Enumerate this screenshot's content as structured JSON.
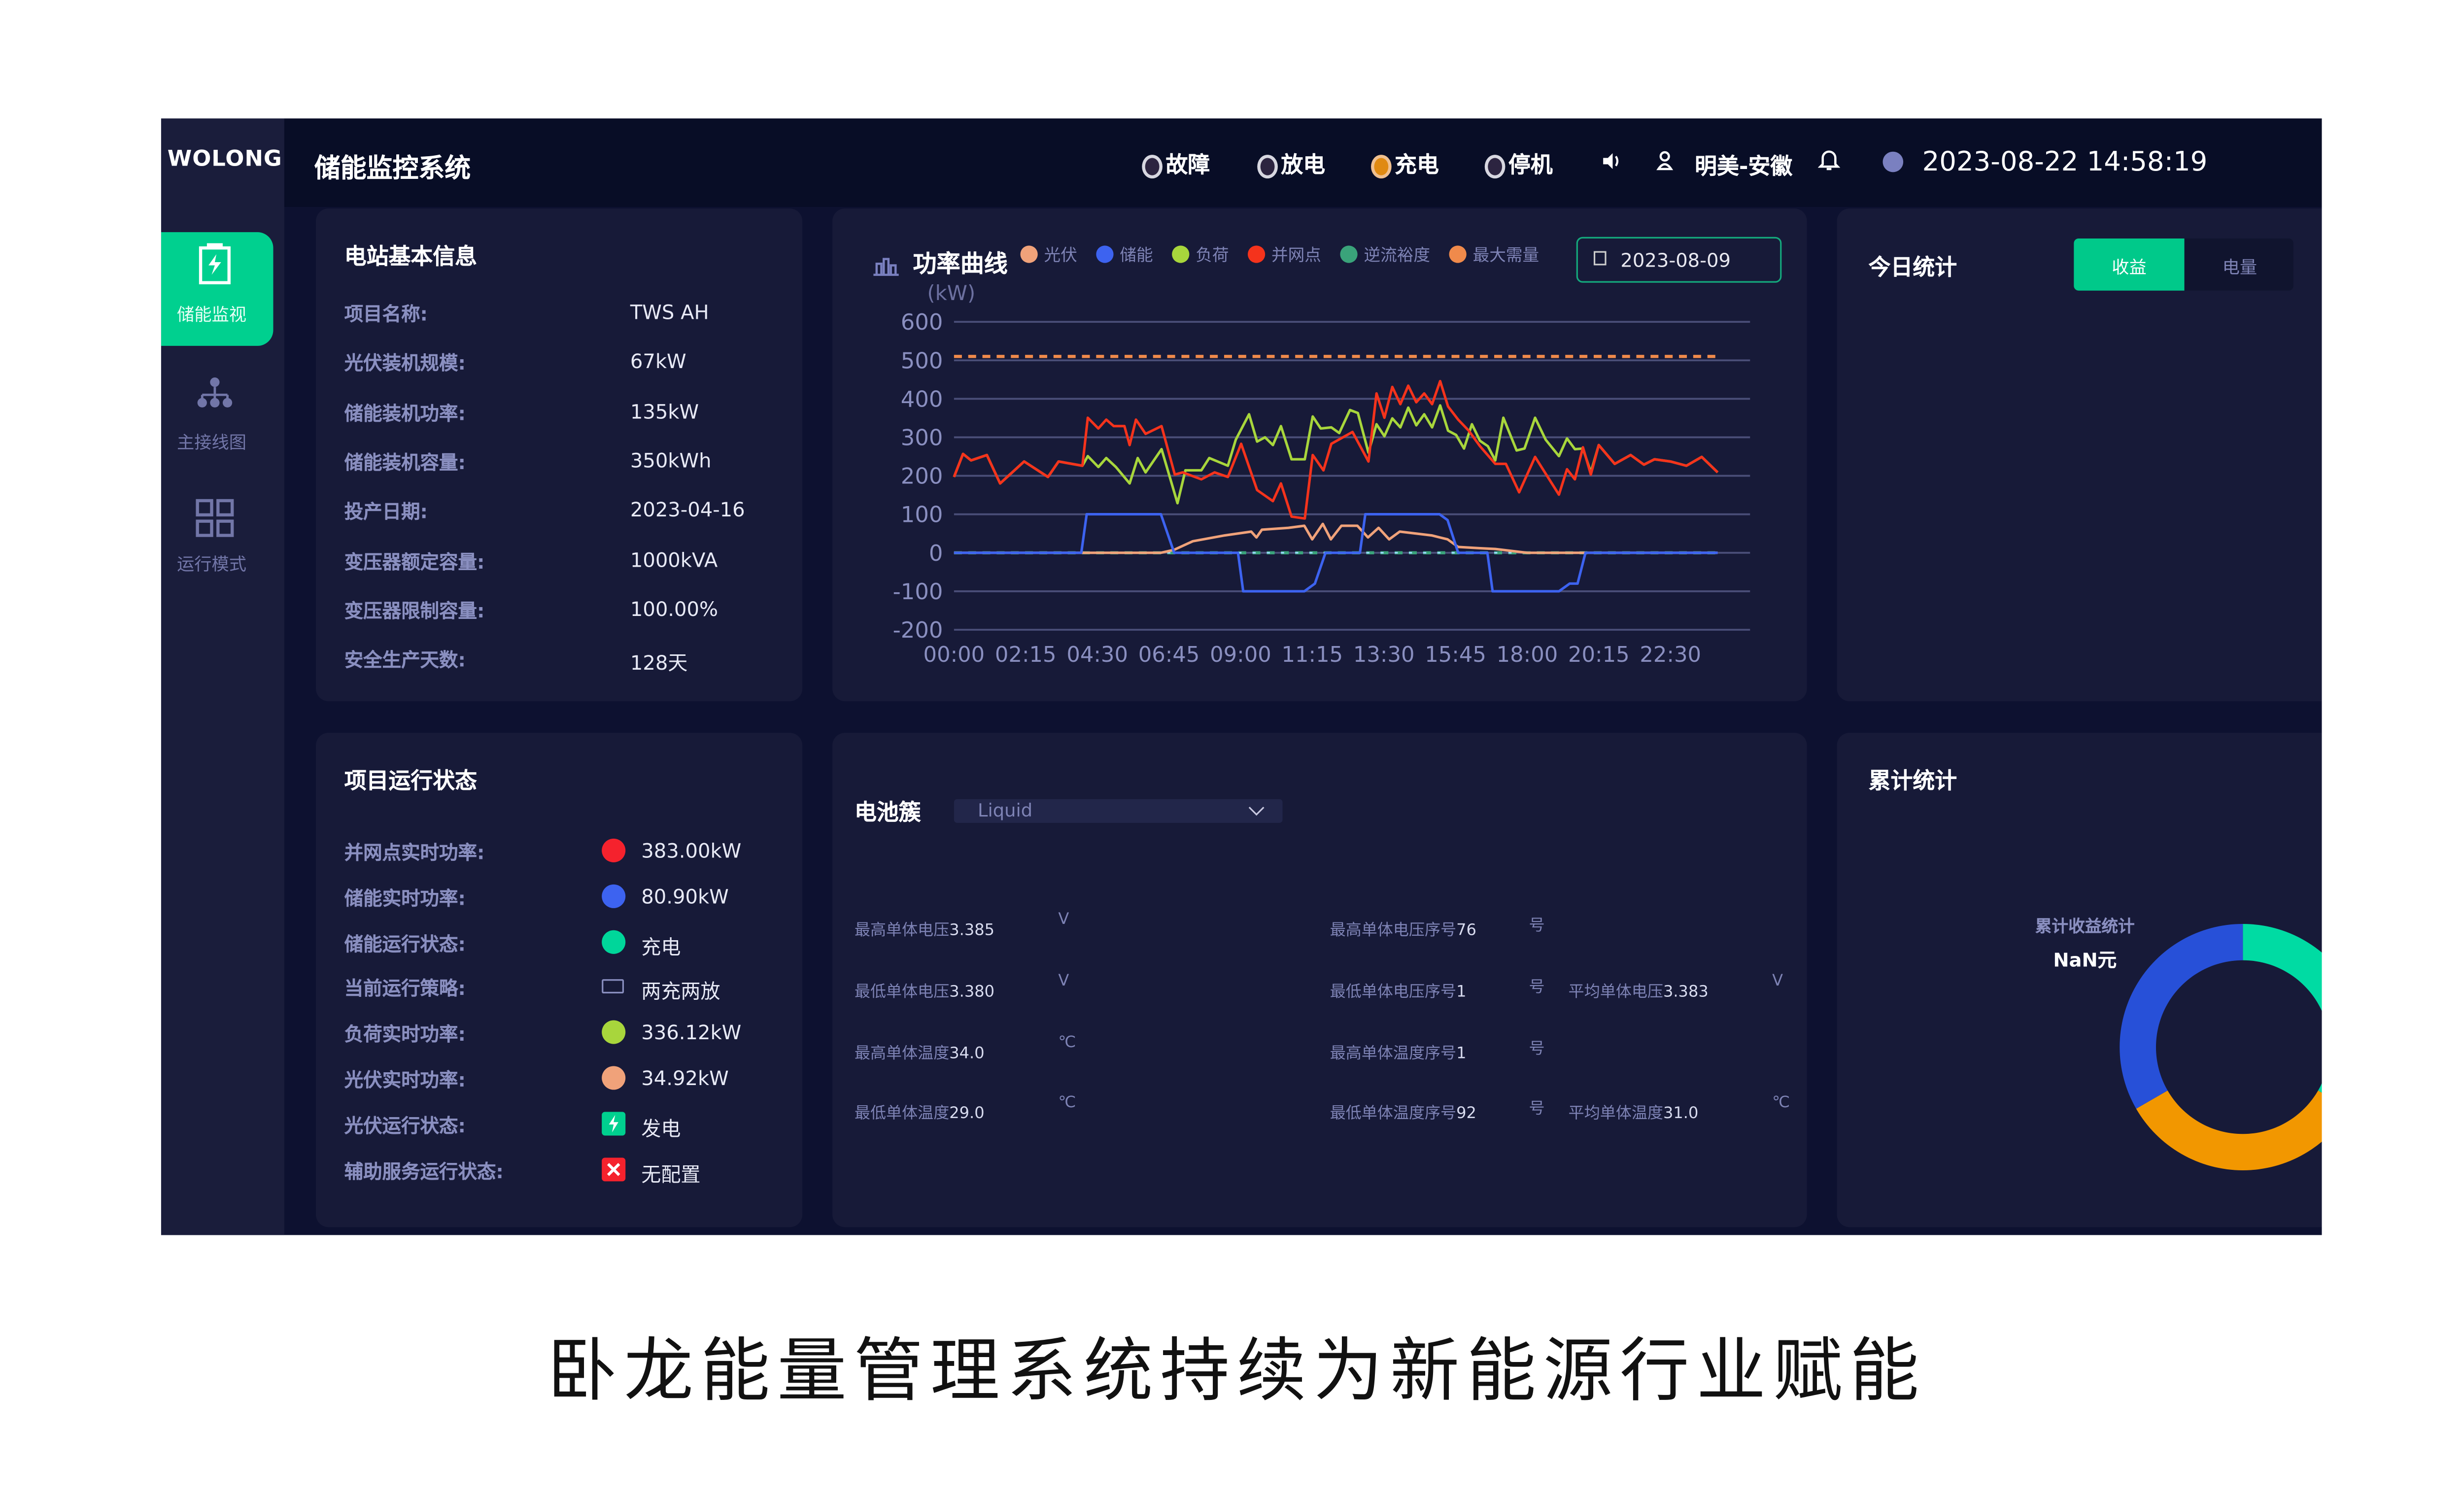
{
  "app": {
    "logo": "WOLONG",
    "title": "储能监控系统"
  },
  "header": {
    "statuses": [
      {
        "label": "故障",
        "color": "#2c2440",
        "active": false
      },
      {
        "label": "放电",
        "color": "#2c2440",
        "active": false
      },
      {
        "label": "充电",
        "color": "#e08a12",
        "active": true
      },
      {
        "label": "停机",
        "color": "#2c2440",
        "active": false
      }
    ],
    "user": "明美-安徽",
    "datetime": "2023-08-22 14:58:19"
  },
  "sidebar": {
    "items": [
      {
        "label": "储能监视",
        "icon": "battery-charge-icon",
        "active": true
      },
      {
        "label": "主接线图",
        "icon": "hierarchy-icon",
        "active": false
      },
      {
        "label": "运行模式",
        "icon": "grid-icon",
        "active": false
      }
    ],
    "accent": "#00d08f"
  },
  "station_info": {
    "title": "电站基本信息",
    "rows": [
      {
        "label": "项目名称:",
        "value": "TWS AH"
      },
      {
        "label": "光伏装机规模:",
        "value": "67kW"
      },
      {
        "label": "储能装机功率:",
        "value": "135kW"
      },
      {
        "label": "储能装机容量:",
        "value": "350kWh"
      },
      {
        "label": "投产日期:",
        "value": "2023-04-16"
      },
      {
        "label": "变压器额定容量:",
        "value": "1000kVA"
      },
      {
        "label": "变压器限制容量:",
        "value": "100.00%"
      },
      {
        "label": "安全生产天数:",
        "value": "128天"
      }
    ]
  },
  "run_status": {
    "title": "项目运行状态",
    "rows": [
      {
        "label": "并网点实时功率:",
        "value": "383.00kW",
        "icon": "red-dot",
        "color": "#f5222d"
      },
      {
        "label": "储能实时功率:",
        "value": "80.90kW",
        "icon": "blue-dot",
        "color": "#3d63f0"
      },
      {
        "label": "储能运行状态:",
        "value": "充电",
        "icon": "green-dot",
        "color": "#00d69a"
      },
      {
        "label": "当前运行策略:",
        "value": "两充两放",
        "icon": "battery-icon",
        "color": "#8a8fc0"
      },
      {
        "label": "负荷实时功率:",
        "value": "336.12kW",
        "icon": "lime-dot",
        "color": "#a8d63c"
      },
      {
        "label": "光伏实时功率:",
        "value": "34.92kW",
        "icon": "peach-dot",
        "color": "#f0a27a"
      },
      {
        "label": "光伏运行状态:",
        "value": "发电",
        "icon": "lightning-icon",
        "color": "#00d08f"
      },
      {
        "label": "辅助服务运行状态:",
        "value": "无配置",
        "icon": "close-icon",
        "color": "#f5222d"
      }
    ]
  },
  "power_curve": {
    "title": "功率曲线",
    "date": "2023-08-09"
  },
  "chart_data": {
    "type": "line",
    "ylabel": "(kW)",
    "ylim": [
      -200,
      600
    ],
    "yticks": [
      600,
      500,
      400,
      300,
      200,
      100,
      0,
      -100,
      -200
    ],
    "xticks": [
      "00:00",
      "02:15",
      "04:30",
      "06:45",
      "09:00",
      "11:15",
      "13:30",
      "15:45",
      "18:00",
      "20:15",
      "22:30"
    ],
    "xlim": [
      "00:00",
      "25:00"
    ],
    "grid": true,
    "legend_position": "top",
    "series": [
      {
        "name": "光伏",
        "color": "#f0a27a",
        "points": [
          [
            "00:00",
            0
          ],
          [
            "06:30",
            0
          ],
          [
            "06:55",
            8
          ],
          [
            "07:30",
            30
          ],
          [
            "08:30",
            45
          ],
          [
            "09:20",
            55
          ],
          [
            "09:30",
            40
          ],
          [
            "09:40",
            60
          ],
          [
            "10:30",
            65
          ],
          [
            "11:00",
            70
          ],
          [
            "11:15",
            35
          ],
          [
            "11:35",
            75
          ],
          [
            "11:50",
            35
          ],
          [
            "12:10",
            70
          ],
          [
            "12:40",
            70
          ],
          [
            "13:00",
            40
          ],
          [
            "13:20",
            65
          ],
          [
            "13:40",
            35
          ],
          [
            "14:00",
            55
          ],
          [
            "14:30",
            50
          ],
          [
            "15:00",
            45
          ],
          [
            "15:30",
            35
          ],
          [
            "15:50",
            15
          ],
          [
            "16:30",
            12
          ],
          [
            "17:00",
            10
          ],
          [
            "17:30",
            5
          ],
          [
            "18:00",
            0
          ],
          [
            "23:59",
            0
          ]
        ]
      },
      {
        "name": "储能",
        "color": "#3d63f0",
        "points": [
          [
            "00:00",
            0
          ],
          [
            "04:00",
            0
          ],
          [
            "04:10",
            100
          ],
          [
            "06:30",
            100
          ],
          [
            "06:55",
            0
          ],
          [
            "08:55",
            0
          ],
          [
            "09:05",
            -100
          ],
          [
            "11:00",
            -100
          ],
          [
            "11:20",
            -80
          ],
          [
            "11:40",
            0
          ],
          [
            "12:45",
            0
          ],
          [
            "12:55",
            100
          ],
          [
            "15:15",
            100
          ],
          [
            "15:30",
            85
          ],
          [
            "15:50",
            0
          ],
          [
            "16:45",
            0
          ],
          [
            "16:55",
            -100
          ],
          [
            "19:00",
            -100
          ],
          [
            "19:20",
            -80
          ],
          [
            "19:35",
            -80
          ],
          [
            "19:50",
            0
          ],
          [
            "23:59",
            0
          ]
        ]
      },
      {
        "name": "负荷",
        "color": "#a8d63c",
        "points": [
          [
            "00:00",
            197
          ],
          [
            "00:17",
            257
          ],
          [
            "00:32",
            240
          ],
          [
            "01:02",
            254
          ],
          [
            "01:27",
            180
          ],
          [
            "02:12",
            237
          ],
          [
            "02:57",
            197
          ],
          [
            "03:17",
            237
          ],
          [
            "04:02",
            226
          ],
          [
            "04:12",
            251
          ],
          [
            "04:32",
            223
          ],
          [
            "04:47",
            246
          ],
          [
            "05:05",
            223
          ],
          [
            "05:31",
            180
          ],
          [
            "05:46",
            246
          ],
          [
            "06:01",
            209
          ],
          [
            "06:31",
            269
          ],
          [
            "07:01",
            129
          ],
          [
            "07:16",
            214
          ],
          [
            "07:46",
            214
          ],
          [
            "08:01",
            246
          ],
          [
            "08:36",
            226
          ],
          [
            "08:51",
            294
          ],
          [
            "09:16",
            360
          ],
          [
            "09:31",
            289
          ],
          [
            "09:46",
            300
          ],
          [
            "10:01",
            280
          ],
          [
            "10:16",
            329
          ],
          [
            "10:36",
            243
          ],
          [
            "11:01",
            243
          ],
          [
            "11:16",
            354
          ],
          [
            "11:31",
            323
          ],
          [
            "11:51",
            326
          ],
          [
            "12:06",
            311
          ],
          [
            "12:26",
            371
          ],
          [
            "12:41",
            363
          ],
          [
            "13:01",
            260
          ],
          [
            "13:16",
            334
          ],
          [
            "13:31",
            303
          ],
          [
            "13:46",
            349
          ],
          [
            "14:01",
            326
          ],
          [
            "14:16",
            377
          ],
          [
            "14:31",
            331
          ],
          [
            "14:46",
            360
          ],
          [
            "15:01",
            326
          ],
          [
            "15:16",
            383
          ],
          [
            "15:31",
            317
          ],
          [
            "15:46",
            306
          ],
          [
            "16:01",
            271
          ],
          [
            "16:16",
            334
          ],
          [
            "16:31",
            291
          ],
          [
            "16:46",
            277
          ],
          [
            "17:00",
            240
          ],
          [
            "17:15",
            351
          ],
          [
            "17:40",
            266
          ],
          [
            "17:55",
            271
          ],
          [
            "18:15",
            351
          ],
          [
            "18:35",
            294
          ],
          [
            "19:00",
            251
          ],
          [
            "19:15",
            297
          ],
          [
            "19:30",
            269
          ],
          [
            "19:45",
            271
          ],
          [
            "20:00",
            209
          ],
          [
            "20:15",
            280
          ],
          [
            "20:45",
            231
          ],
          [
            "21:15",
            254
          ],
          [
            "21:40",
            229
          ],
          [
            "22:00",
            243
          ],
          [
            "22:30",
            237
          ],
          [
            "23:00",
            226
          ],
          [
            "23:29",
            249
          ],
          [
            "23:59",
            209
          ]
        ]
      },
      {
        "name": "并网点",
        "color": "#f5331c",
        "points": [
          [
            "00:00",
            197
          ],
          [
            "00:17",
            257
          ],
          [
            "00:32",
            240
          ],
          [
            "01:02",
            254
          ],
          [
            "01:27",
            180
          ],
          [
            "02:12",
            237
          ],
          [
            "02:57",
            197
          ],
          [
            "03:17",
            237
          ],
          [
            "04:02",
            226
          ],
          [
            "04:12",
            351
          ],
          [
            "04:32",
            323
          ],
          [
            "04:47",
            346
          ],
          [
            "05:01",
            329
          ],
          [
            "05:21",
            329
          ],
          [
            "05:31",
            280
          ],
          [
            "05:43",
            346
          ],
          [
            "06:01",
            309
          ],
          [
            "06:31",
            329
          ],
          [
            "06:56",
            203
          ],
          [
            "07:11",
            209
          ],
          [
            "07:46",
            191
          ],
          [
            "08:11",
            209
          ],
          [
            "08:36",
            197
          ],
          [
            "09:01",
            283
          ],
          [
            "09:31",
            163
          ],
          [
            "10:01",
            134
          ],
          [
            "10:16",
            180
          ],
          [
            "10:36",
            94
          ],
          [
            "11:01",
            89
          ],
          [
            "11:16",
            254
          ],
          [
            "11:36",
            214
          ],
          [
            "11:51",
            283
          ],
          [
            "12:31",
            314
          ],
          [
            "13:01",
            237
          ],
          [
            "13:16",
            414
          ],
          [
            "13:31",
            351
          ],
          [
            "13:46",
            431
          ],
          [
            "14:01",
            386
          ],
          [
            "14:16",
            434
          ],
          [
            "14:31",
            391
          ],
          [
            "14:46",
            414
          ],
          [
            "15:01",
            386
          ],
          [
            "15:16",
            446
          ],
          [
            "15:31",
            380
          ],
          [
            "15:50",
            346
          ],
          [
            "16:10",
            317
          ],
          [
            "16:31",
            277
          ],
          [
            "17:00",
            231
          ],
          [
            "17:20",
            231
          ],
          [
            "17:45",
            157
          ],
          [
            "18:15",
            249
          ],
          [
            "19:00",
            151
          ],
          [
            "19:15",
            217
          ],
          [
            "19:30",
            191
          ],
          [
            "19:45",
            274
          ],
          [
            "20:00",
            203
          ],
          [
            "20:15",
            280
          ],
          [
            "20:45",
            231
          ],
          [
            "21:15",
            254
          ],
          [
            "21:40",
            229
          ],
          [
            "22:00",
            243
          ],
          [
            "22:30",
            237
          ],
          [
            "23:00",
            226
          ],
          [
            "23:29",
            249
          ],
          [
            "23:59",
            209
          ]
        ]
      },
      {
        "name": "逆流裕度",
        "color": "#3aa37a",
        "dashed": true,
        "points": [
          [
            "00:00",
            0
          ],
          [
            "23:59",
            0
          ]
        ]
      },
      {
        "name": "最大需量",
        "color": "#f08a4b",
        "dashed": true,
        "points": [
          [
            "00:00",
            510
          ],
          [
            "23:59",
            510
          ]
        ]
      }
    ]
  },
  "today_stats": {
    "title": "今日统计",
    "tabs": [
      {
        "label": "收益",
        "active": true
      },
      {
        "label": "电量",
        "active": false
      }
    ]
  },
  "battery": {
    "title": "电池簇",
    "select_value": "Liquid",
    "rows": [
      [
        {
          "label": "最高单体电压",
          "value": "3.385",
          "unit": "V"
        },
        {
          "label": "最高单体电压序号",
          "value": "76",
          "unit": "号"
        },
        null
      ],
      [
        {
          "label": "最低单体电压",
          "value": "3.380",
          "unit": "V"
        },
        {
          "label": "最低单体电压序号",
          "value": "1",
          "unit": "号"
        },
        {
          "label": "平均单体电压",
          "value": "3.383",
          "unit": "V"
        }
      ],
      [
        {
          "label": "最高单体温度",
          "value": "34.0",
          "unit": "℃"
        },
        {
          "label": "最高单体温度序号",
          "value": "1",
          "unit": "号"
        },
        null
      ],
      [
        {
          "label": "最低单体温度",
          "value": "29.0",
          "unit": "℃"
        },
        {
          "label": "最低单体温度序号",
          "value": "92",
          "unit": "号"
        },
        {
          "label": "平均单体温度",
          "value": "31.0",
          "unit": "℃"
        }
      ]
    ]
  },
  "cumulative": {
    "title": "累计统计",
    "center_label": "累计收益统计",
    "center_value": "NaN元",
    "segments": [
      {
        "value": 1,
        "color": "#00dba3"
      },
      {
        "value": 1,
        "color": "#f29700"
      },
      {
        "value": 1,
        "color": "#2750d8"
      }
    ]
  },
  "caption": "卧龙能量管理系统持续为新能源行业赋能"
}
